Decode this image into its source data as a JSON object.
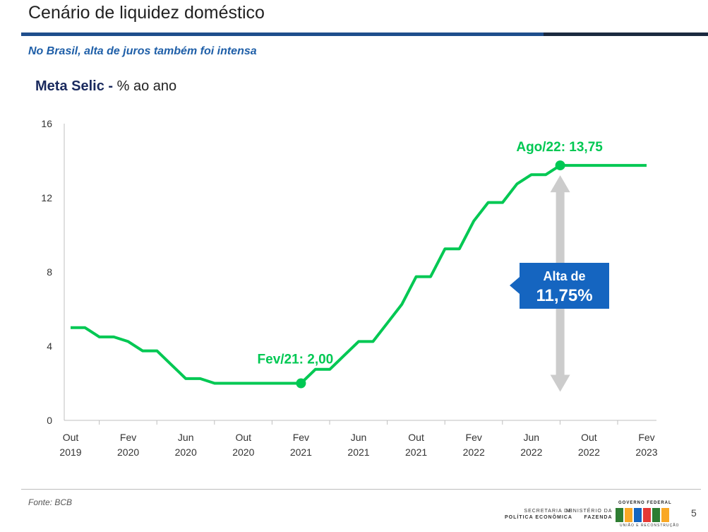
{
  "slide": {
    "title": "Cenário de liquidez doméstico",
    "subtitle": "No Brasil, alta de juros também foi intensa",
    "chart_heading_bold": "Meta Selic -",
    "chart_heading_rest": " % ao ano",
    "source": "Fonte: BCB",
    "page_number": "5",
    "footer_secretaria": [
      "SECRETARIA DE",
      "POLÍTICA ECONÔMICA"
    ],
    "footer_ministerio": [
      "MINISTÉRIO DA",
      "FAZENDA"
    ],
    "footer_gov": "GOVERNO FEDERAL",
    "footer_uniao": "UNIÃO E RECONSTRUÇÃO"
  },
  "colors": {
    "line": "#00c853",
    "accent": "#1f5fa8",
    "callout": "#1565c0",
    "arrow": "#cccccc"
  },
  "chart_data": {
    "type": "line",
    "ylim": [
      0,
      16
    ],
    "yticks": [
      0,
      4,
      8,
      12,
      16
    ],
    "x_tick_labels": [
      [
        "Out",
        "2019"
      ],
      [
        "Fev",
        "2020"
      ],
      [
        "Jun",
        "2020"
      ],
      [
        "Out",
        "2020"
      ],
      [
        "Fev",
        "2021"
      ],
      [
        "Jun",
        "2021"
      ],
      [
        "Out",
        "2021"
      ],
      [
        "Fev",
        "2022"
      ],
      [
        "Jun",
        "2022"
      ],
      [
        "Out",
        "2022"
      ],
      [
        "Fev",
        "2023"
      ]
    ],
    "x_range": [
      "2019-10",
      "2023-02"
    ],
    "series": [
      {
        "points": [
          [
            "2019-10",
            5.0
          ],
          [
            "2019-11",
            5.0
          ],
          [
            "2019-12",
            4.5
          ],
          [
            "2020-01",
            4.5
          ],
          [
            "2020-02",
            4.25
          ],
          [
            "2020-03",
            3.75
          ],
          [
            "2020-04",
            3.75
          ],
          [
            "2020-05",
            3.0
          ],
          [
            "2020-06",
            2.25
          ],
          [
            "2020-07",
            2.25
          ],
          [
            "2020-08",
            2.0
          ],
          [
            "2020-09",
            2.0
          ],
          [
            "2020-10",
            2.0
          ],
          [
            "2020-11",
            2.0
          ],
          [
            "2020-12",
            2.0
          ],
          [
            "2021-01",
            2.0
          ],
          [
            "2021-02",
            2.0
          ],
          [
            "2021-03",
            2.75
          ],
          [
            "2021-04",
            2.75
          ],
          [
            "2021-05",
            3.5
          ],
          [
            "2021-06",
            4.25
          ],
          [
            "2021-07",
            4.25
          ],
          [
            "2021-08",
            5.25
          ],
          [
            "2021-09",
            6.25
          ],
          [
            "2021-10",
            7.75
          ],
          [
            "2021-11",
            7.75
          ],
          [
            "2021-12",
            9.25
          ],
          [
            "2022-01",
            9.25
          ],
          [
            "2022-02",
            10.75
          ],
          [
            "2022-03",
            11.75
          ],
          [
            "2022-04",
            11.75
          ],
          [
            "2022-05",
            12.75
          ],
          [
            "2022-06",
            13.25
          ],
          [
            "2022-07",
            13.25
          ],
          [
            "2022-08",
            13.75
          ],
          [
            "2022-09",
            13.75
          ],
          [
            "2022-10",
            13.75
          ],
          [
            "2022-11",
            13.75
          ],
          [
            "2022-12",
            13.75
          ],
          [
            "2023-01",
            13.75
          ],
          [
            "2023-02",
            13.75
          ]
        ]
      }
    ],
    "annotations": [
      {
        "label": "Fev/21: 2,00",
        "x": "2021-02",
        "y": 2.0
      },
      {
        "label": "Ago/22: 13,75",
        "x": "2022-08",
        "y": 13.75
      }
    ],
    "callout": {
      "line1": "Alta de",
      "line2": "11,75%"
    }
  }
}
